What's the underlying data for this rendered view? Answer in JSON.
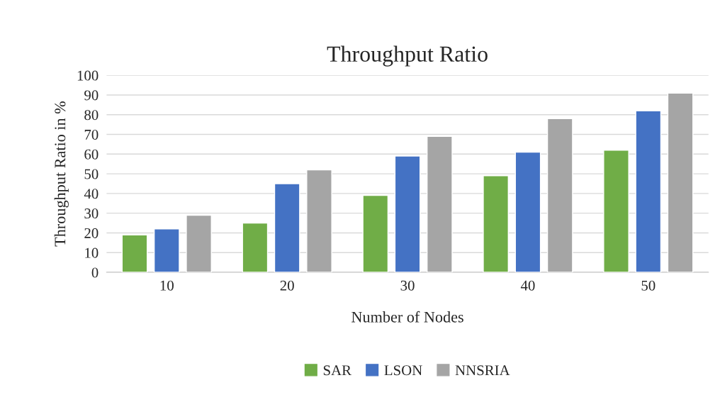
{
  "chart_data": {
    "type": "bar",
    "title": "Throughput Ratio",
    "xlabel": "Number of Nodes",
    "ylabel": "Throughput Ratio in %",
    "categories": [
      "10",
      "20",
      "30",
      "40",
      "50"
    ],
    "series": [
      {
        "name": "SAR",
        "color": "#70ad47",
        "values": [
          19,
          25,
          39,
          49,
          62
        ]
      },
      {
        "name": "LSON",
        "color": "#4472c4",
        "values": [
          22,
          45,
          59,
          61,
          82
        ]
      },
      {
        "name": "NNSRIA",
        "color": "#a5a5a5",
        "values": [
          29,
          52,
          69,
          78,
          91
        ]
      }
    ],
    "ylim": [
      0,
      100
    ],
    "yticks": [
      0,
      10,
      20,
      30,
      40,
      50,
      60,
      70,
      80,
      90,
      100
    ],
    "grid": "y",
    "legend": "bottom"
  }
}
